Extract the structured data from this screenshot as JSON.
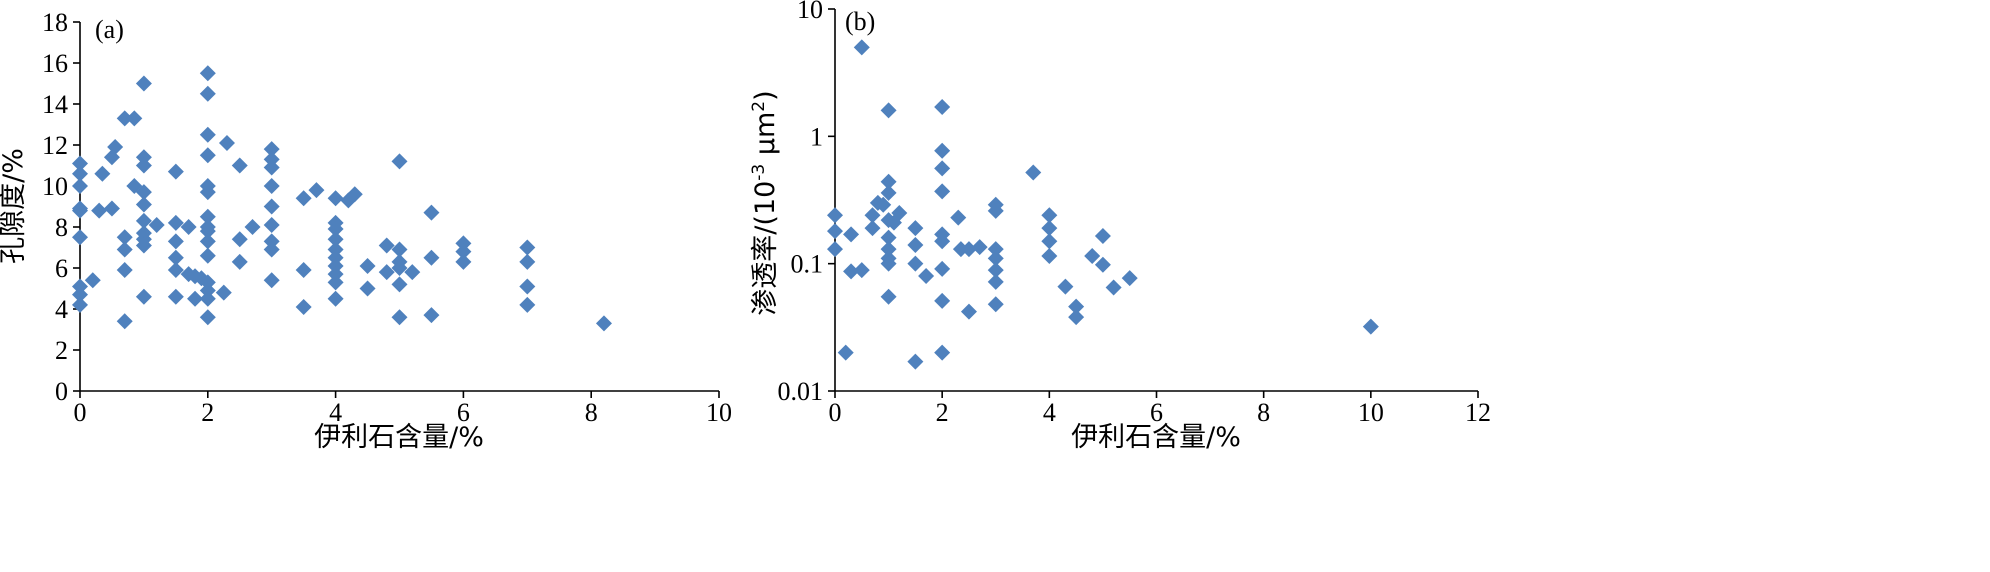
{
  "chart_data": [
    {
      "type": "scatter",
      "panel_label": "(a)",
      "xlabel": "伊利石含量/%",
      "ylabel": "孔隙度/%",
      "xlim": [
        0,
        10
      ],
      "ylim": [
        0,
        18
      ],
      "xticks": [
        "0",
        "2",
        "4",
        "6",
        "8",
        "10"
      ],
      "yticks": [
        "0",
        "2",
        "4",
        "6",
        "8",
        "10",
        "12",
        "14",
        "16",
        "18"
      ],
      "log_y": false,
      "marker": "diamond",
      "color": "#4f81bd",
      "points": [
        [
          0,
          11.1
        ],
        [
          0,
          10.6
        ],
        [
          0,
          10.0
        ],
        [
          0,
          8.9
        ],
        [
          0,
          8.8
        ],
        [
          0,
          7.5
        ],
        [
          0,
          5.1
        ],
        [
          0,
          4.7
        ],
        [
          0,
          4.2
        ],
        [
          0.2,
          5.4
        ],
        [
          0.3,
          8.8
        ],
        [
          0.35,
          10.6
        ],
        [
          0.5,
          8.9
        ],
        [
          0.5,
          11.4
        ],
        [
          0.55,
          11.9
        ],
        [
          0.7,
          13.3
        ],
        [
          0.7,
          7.5
        ],
        [
          0.7,
          6.9
        ],
        [
          0.7,
          5.9
        ],
        [
          0.7,
          3.4
        ],
        [
          0.85,
          13.3
        ],
        [
          0.85,
          10.0
        ],
        [
          1.0,
          15.0
        ],
        [
          1.0,
          11.4
        ],
        [
          1.0,
          11.0
        ],
        [
          1.0,
          9.7
        ],
        [
          1.0,
          9.1
        ],
        [
          1.0,
          8.3
        ],
        [
          1.0,
          7.7
        ],
        [
          1.0,
          7.4
        ],
        [
          1.0,
          7.1
        ],
        [
          1.0,
          4.6
        ],
        [
          1.2,
          8.1
        ],
        [
          1.5,
          10.7
        ],
        [
          1.5,
          8.2
        ],
        [
          1.5,
          7.3
        ],
        [
          1.5,
          6.5
        ],
        [
          1.5,
          5.9
        ],
        [
          1.5,
          4.6
        ],
        [
          1.7,
          8.0
        ],
        [
          1.7,
          5.7
        ],
        [
          1.8,
          5.6
        ],
        [
          1.8,
          4.5
        ],
        [
          1.9,
          5.5
        ],
        [
          2.0,
          15.5
        ],
        [
          2.0,
          14.5
        ],
        [
          2.0,
          12.5
        ],
        [
          2.0,
          11.5
        ],
        [
          2.0,
          10.0
        ],
        [
          2.0,
          9.7
        ],
        [
          2.0,
          8.5
        ],
        [
          2.0,
          8.0
        ],
        [
          2.0,
          7.8
        ],
        [
          2.0,
          7.3
        ],
        [
          2.0,
          6.6
        ],
        [
          2.0,
          5.3
        ],
        [
          2.0,
          4.9
        ],
        [
          2.0,
          4.5
        ],
        [
          2.0,
          3.6
        ],
        [
          2.25,
          4.8
        ],
        [
          2.3,
          12.1
        ],
        [
          2.5,
          11.0
        ],
        [
          2.5,
          7.4
        ],
        [
          2.5,
          6.3
        ],
        [
          2.7,
          8.0
        ],
        [
          3.0,
          11.8
        ],
        [
          3.0,
          11.3
        ],
        [
          3.0,
          10.9
        ],
        [
          3.0,
          10.0
        ],
        [
          3.0,
          9.0
        ],
        [
          3.0,
          8.1
        ],
        [
          3.0,
          7.3
        ],
        [
          3.0,
          6.9
        ],
        [
          3.0,
          5.4
        ],
        [
          3.5,
          9.4
        ],
        [
          3.5,
          5.9
        ],
        [
          3.5,
          4.1
        ],
        [
          3.7,
          9.8
        ],
        [
          4.0,
          9.4
        ],
        [
          4.0,
          8.2
        ],
        [
          4.0,
          7.9
        ],
        [
          4.0,
          7.4
        ],
        [
          4.0,
          6.9
        ],
        [
          4.0,
          6.5
        ],
        [
          4.0,
          6.1
        ],
        [
          4.0,
          5.7
        ],
        [
          4.0,
          5.3
        ],
        [
          4.0,
          4.5
        ],
        [
          4.2,
          9.3
        ],
        [
          4.3,
          9.6
        ],
        [
          4.5,
          6.1
        ],
        [
          4.5,
          5.0
        ],
        [
          4.8,
          7.1
        ],
        [
          4.8,
          5.8
        ],
        [
          5.0,
          11.2
        ],
        [
          5.0,
          6.9
        ],
        [
          5.0,
          6.3
        ],
        [
          5.0,
          6.0
        ],
        [
          5.0,
          5.2
        ],
        [
          5.0,
          3.6
        ],
        [
          5.2,
          5.8
        ],
        [
          5.5,
          8.7
        ],
        [
          5.5,
          6.5
        ],
        [
          5.5,
          3.7
        ],
        [
          6.0,
          7.2
        ],
        [
          6.0,
          6.8
        ],
        [
          6.0,
          6.3
        ],
        [
          7.0,
          7.0
        ],
        [
          7.0,
          6.3
        ],
        [
          7.0,
          5.1
        ],
        [
          7.0,
          4.2
        ],
        [
          8.2,
          3.3
        ]
      ]
    },
    {
      "type": "scatter",
      "panel_label": "(b)",
      "xlabel": "伊利石含量/%",
      "ylabel_main": "渗透率/(10",
      "ylabel_sup1": "-3",
      "ylabel_mid": " μm",
      "ylabel_sup2": "2",
      "ylabel_end": ")",
      "xlim": [
        0,
        12
      ],
      "ylim": [
        0.01,
        10
      ],
      "xticks": [
        "0",
        "2",
        "4",
        "6",
        "8",
        "10",
        "12"
      ],
      "yticks": [
        "0.01",
        "0.1",
        "1",
        "10"
      ],
      "log_y": true,
      "marker": "diamond",
      "color": "#4f81bd",
      "points": [
        [
          0,
          0.24
        ],
        [
          0,
          0.18
        ],
        [
          0,
          0.13
        ],
        [
          0.2,
          0.02
        ],
        [
          0.3,
          0.17
        ],
        [
          0.3,
          0.087
        ],
        [
          0.5,
          5.0
        ],
        [
          0.5,
          0.089
        ],
        [
          0.7,
          0.24
        ],
        [
          0.7,
          0.19
        ],
        [
          0.8,
          0.3
        ],
        [
          0.9,
          0.29
        ],
        [
          1.0,
          1.6
        ],
        [
          1.0,
          0.44
        ],
        [
          1.0,
          0.36
        ],
        [
          1.0,
          0.22
        ],
        [
          1.0,
          0.16
        ],
        [
          1.0,
          0.13
        ],
        [
          1.0,
          0.11
        ],
        [
          1.0,
          0.1
        ],
        [
          1.0,
          0.055
        ],
        [
          1.1,
          0.21
        ],
        [
          1.2,
          0.25
        ],
        [
          1.5,
          0.19
        ],
        [
          1.5,
          0.14
        ],
        [
          1.5,
          0.1
        ],
        [
          1.5,
          0.017
        ],
        [
          1.7,
          0.08
        ],
        [
          2.0,
          1.7
        ],
        [
          2.0,
          0.77
        ],
        [
          2.0,
          0.56
        ],
        [
          2.0,
          0.37
        ],
        [
          2.0,
          0.17
        ],
        [
          2.0,
          0.15
        ],
        [
          2.0,
          0.091
        ],
        [
          2.0,
          0.051
        ],
        [
          2.0,
          0.02
        ],
        [
          2.3,
          0.23
        ],
        [
          2.35,
          0.13
        ],
        [
          2.5,
          0.13
        ],
        [
          2.5,
          0.042
        ],
        [
          2.7,
          0.135
        ],
        [
          3.0,
          0.29
        ],
        [
          3.0,
          0.26
        ],
        [
          3.0,
          0.13
        ],
        [
          3.0,
          0.11
        ],
        [
          3.0,
          0.089
        ],
        [
          3.0,
          0.072
        ],
        [
          3.0,
          0.048
        ],
        [
          3.7,
          0.52
        ],
        [
          4.0,
          0.24
        ],
        [
          4.0,
          0.19
        ],
        [
          4.0,
          0.15
        ],
        [
          4.0,
          0.115
        ],
        [
          4.3,
          0.066
        ],
        [
          4.5,
          0.046
        ],
        [
          4.5,
          0.038
        ],
        [
          4.8,
          0.115
        ],
        [
          5.0,
          0.165
        ],
        [
          5.0,
          0.098
        ],
        [
          5.2,
          0.065
        ],
        [
          5.5,
          0.077
        ],
        [
          10.0,
          0.032
        ]
      ]
    }
  ]
}
